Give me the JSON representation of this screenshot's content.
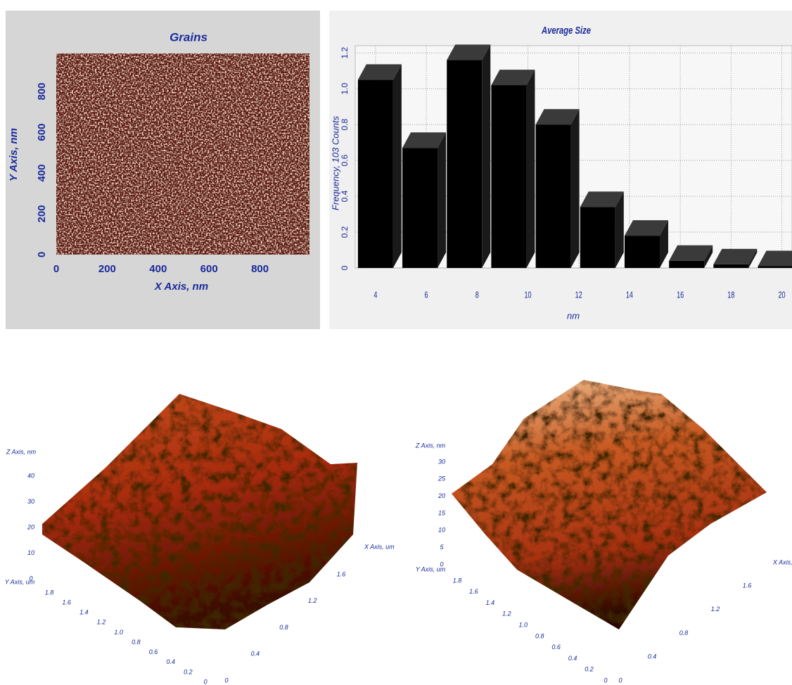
{
  "chart_data": [
    {
      "type": "image",
      "title": "Grains",
      "x_label": "X Axis, nm",
      "y_label": "Y Axis, nm",
      "xlim": [
        0,
        1000
      ],
      "ylim": [
        0,
        1000
      ],
      "xticks": [
        0,
        200,
        400,
        600,
        800
      ],
      "yticks": [
        0,
        200,
        400,
        600,
        800
      ]
    },
    {
      "type": "bar",
      "title": "Average Size",
      "x_label": "nm",
      "y_label": "Frequency, 103 Counts",
      "x": [
        4,
        5.75,
        7.5,
        9.25,
        11,
        12.75,
        14.5,
        16.25,
        18,
        19.75
      ],
      "values": [
        1.05,
        0.67,
        1.16,
        1.02,
        0.8,
        0.34,
        0.18,
        0.04,
        0.02,
        0.01
      ],
      "color": "#000000",
      "xlim": [
        3.2,
        20.4
      ],
      "ylim": [
        0,
        1.24
      ],
      "xticks": [
        4,
        6,
        8,
        10,
        12,
        14,
        16,
        18,
        20
      ],
      "yticks": [
        0,
        0.2,
        0.4,
        0.6,
        0.8,
        {
          "value": 1,
          "label": "1.0"
        },
        1.2
      ],
      "grid": true
    },
    {
      "type": "surface",
      "x_label": "X Axis, um",
      "y_label": "Y Axis, um",
      "z_label": "Z Axis, nm",
      "xlim": [
        0,
        1.6
      ],
      "ylim": [
        0,
        1.8
      ],
      "zlim": [
        0,
        40
      ],
      "xticks": [
        0,
        0.4,
        0.8,
        1.2,
        1.6
      ],
      "yticks": [
        0,
        0.2,
        0.4,
        0.6,
        0.8,
        {
          "value": 1,
          "label": "1.0"
        },
        1.2,
        1.4,
        1.6,
        1.8
      ],
      "zticks": [
        0,
        10,
        20,
        30,
        40
      ]
    },
    {
      "type": "surface",
      "x_label": "X Axis, um",
      "y_label": "Y Axis, um",
      "z_label": "Z Axis, nm",
      "xlim": [
        0,
        1.6
      ],
      "ylim": [
        0,
        1.8
      ],
      "zlim": [
        0,
        30
      ],
      "xticks": [
        0,
        0.4,
        0.8,
        1.2,
        1.6
      ],
      "yticks": [
        0,
        0.2,
        0.4,
        0.6,
        0.8,
        {
          "value": 1,
          "label": "1.0"
        },
        1.2,
        1.4,
        1.6,
        1.8
      ],
      "zticks": [
        0,
        5,
        10,
        15,
        20,
        25,
        30
      ]
    }
  ]
}
